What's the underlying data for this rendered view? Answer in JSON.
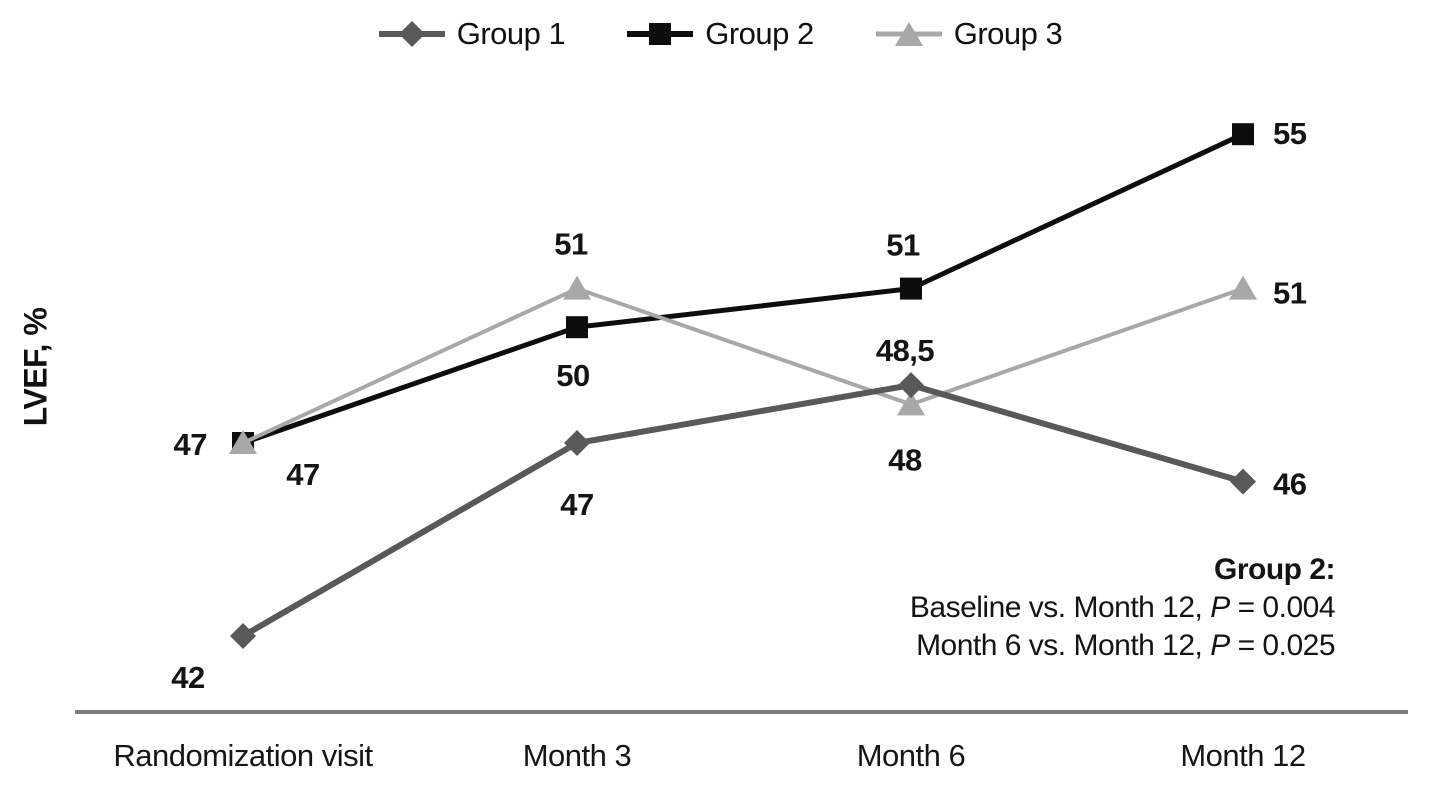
{
  "chart_data": {
    "type": "line",
    "ylabel": "LVEF, %",
    "xlabel": "",
    "categories": [
      "Randomization visit",
      "Month 3",
      "Month 6",
      "Month 12"
    ],
    "series": [
      {
        "name": "Group 1",
        "marker": "diamond",
        "color": "#595959",
        "line_width": 6,
        "values": [
          42,
          47,
          48.5,
          46
        ],
        "point_labels": [
          "42",
          "47",
          "48,5",
          "46"
        ],
        "label_anchors": [
          "middle",
          "middle",
          "middle",
          "start"
        ],
        "label_offsets": [
          [
            -55,
            52
          ],
          [
            0,
            72
          ],
          [
            -6,
            -24
          ],
          [
            30,
            13
          ]
        ]
      },
      {
        "name": "Group 2",
        "marker": "square",
        "color": "#0d0d0d",
        "line_width": 5,
        "values": [
          47,
          50,
          51,
          55
        ],
        "point_labels": [
          "47",
          "50",
          "51",
          "55"
        ],
        "label_anchors": [
          "end",
          "middle",
          "middle",
          "start"
        ],
        "label_offsets": [
          [
            -36,
            12
          ],
          [
            -4,
            59
          ],
          [
            -8,
            -33
          ],
          [
            30,
            10
          ]
        ]
      },
      {
        "name": "Group 3",
        "marker": "triangle",
        "color": "#a8a8a8",
        "line_width": 4,
        "values": [
          47,
          51,
          48,
          51
        ],
        "point_labels": [
          "47",
          "51",
          "48",
          "51"
        ],
        "label_anchors": [
          "middle",
          "middle",
          "middle",
          "start"
        ],
        "label_offsets": [
          [
            60,
            42
          ],
          [
            -6,
            -34
          ],
          [
            -6,
            66
          ],
          [
            30,
            15
          ]
        ]
      }
    ],
    "draw_order": [
      1,
      2,
      0
    ],
    "ylim": [
      40,
      58.5
    ],
    "grid": false,
    "legend_position": "top"
  },
  "annotation": {
    "title": "Group 2:",
    "lines": [
      {
        "text": "Baseline vs. Month 12, ",
        "pvar": "P",
        "value": " = 0.004"
      },
      {
        "text": "Month 6 vs. Month 12, ",
        "pvar": "P",
        "value": " = 0.025"
      }
    ]
  },
  "colors": {
    "axis": "#7d7d7d",
    "text": "#141414"
  }
}
